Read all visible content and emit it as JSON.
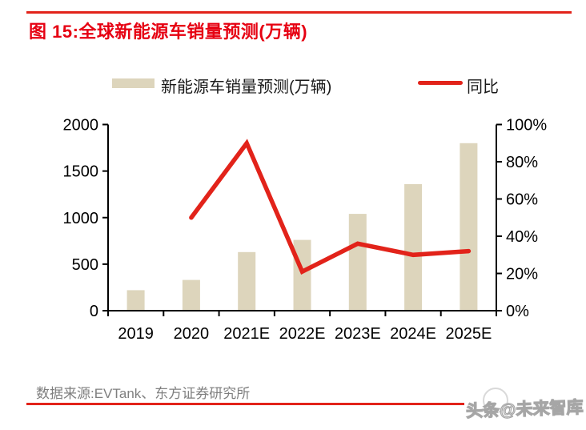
{
  "header": {
    "title": "图 15:全球新能源车销量预测(万辆)"
  },
  "chart_data": {
    "type": "bar+line",
    "title": "全球新能源车销量预测(万辆)",
    "categories": [
      "2019",
      "2020",
      "2021E",
      "2022E",
      "2023E",
      "2024E",
      "2025E"
    ],
    "series": [
      {
        "name": "新能源车销量预测(万辆)",
        "type": "bar",
        "axis": "left",
        "color": "#DDD5BC",
        "values": [
          220,
          330,
          630,
          760,
          1040,
          1360,
          1800
        ]
      },
      {
        "name": "同比",
        "type": "line",
        "axis": "right",
        "color": "#E2231A",
        "values": [
          null,
          50,
          90,
          21,
          36,
          30,
          32
        ]
      }
    ],
    "left_axis": {
      "min": 0,
      "max": 2000,
      "tick_labels": [
        "0",
        "500",
        "1000",
        "1500",
        "2000"
      ]
    },
    "right_axis": {
      "min": 0,
      "max": 100,
      "tick_labels": [
        "0%",
        "20%",
        "40%",
        "60%",
        "80%",
        "100%"
      ]
    },
    "grid": false,
    "legend_position": "top",
    "xlabel": "",
    "ylabel_left": "万辆",
    "ylabel_right": "%"
  },
  "footer": {
    "source": "数据来源:EVTank、东方证券研究所",
    "watermark": "头条@未来智库"
  },
  "colors": {
    "accent_red": "#E2231A",
    "title_red": "#E60012",
    "bar_tan": "#DDD5BC",
    "axis_black": "#000000",
    "source_gray": "#7F7F7F",
    "watermark_gray": "#A6A6A6"
  }
}
